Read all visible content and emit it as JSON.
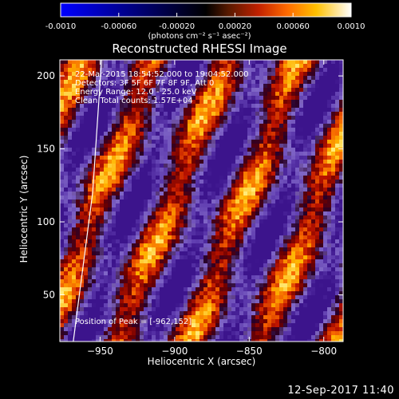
{
  "colorbar": {
    "ticks": [
      "-0.0010",
      "-0.00060",
      "-0.00020",
      "0.00020",
      "0.00060",
      "0.0010"
    ],
    "tick_values": [
      -0.001,
      -0.0006,
      -0.0002,
      0.0002,
      0.0006,
      0.001
    ],
    "units": "(photons cm⁻² s⁻¹ asec⁻²)",
    "colormap": [
      "#0000ff",
      "#000000",
      "#5a1a00",
      "#c02000",
      "#ff6a00",
      "#ffc000",
      "#ffffff"
    ]
  },
  "plot": {
    "title": "Reconstructed RHESSI Image",
    "xlabel": "Heliocentric X (arcsec)",
    "ylabel": "Heliocentric Y (arcsec)",
    "info_lines": [
      "22-Mar-2015 18:54:52.000 to 19:04:52.000",
      "Detectors: 3F 5F 6F 7F 8F 9F, Att 0",
      "Energy Range: 12.0 - 25.0 keV",
      "Clean    Total counts: 1.57E+04"
    ],
    "peak_label": "Position of Peak = [-962,152]"
  },
  "chart_data": {
    "type": "heatmap",
    "title": "Reconstructed RHESSI Image",
    "xlabel": "Heliocentric X (arcsec)",
    "ylabel": "Heliocentric Y (arcsec)",
    "xlim": [
      -977,
      -787
    ],
    "ylim": [
      18,
      211
    ],
    "xticks": [
      -950,
      -900,
      -850,
      -800
    ],
    "yticks": [
      50,
      100,
      150,
      200
    ],
    "colorbar_range": [
      -0.001,
      0.001
    ],
    "peak_position": [
      -962,
      152
    ],
    "limb_line": [
      [
        -968,
        18
      ],
      [
        -955,
        120
      ],
      [
        -949,
        211
      ]
    ]
  },
  "footer": {
    "timestamp": "12-Sep-2017 11:40"
  }
}
